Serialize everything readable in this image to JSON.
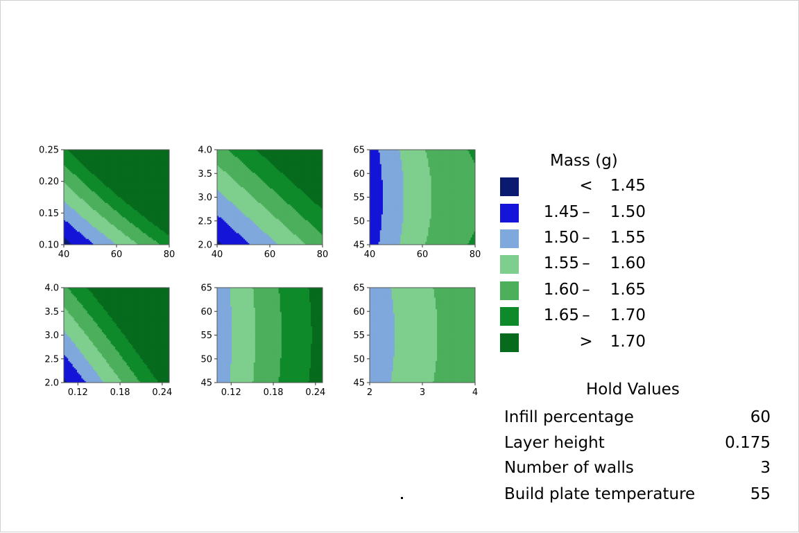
{
  "chart_data": {
    "type": "contour",
    "colors": [
      "#0a1a6e",
      "#1515d9",
      "#7fa8dc",
      "#7ecf8e",
      "#4caf5c",
      "#0f8a2a",
      "#076b1d"
    ],
    "panels": [
      {
        "x_ticks": [
          "40",
          "60",
          "80"
        ],
        "xlim": [
          40,
          80
        ],
        "y_ticks": [
          "0.10",
          "0.15",
          "0.20",
          "0.25"
        ],
        "ylim": [
          0.1,
          0.25
        ]
      },
      {
        "x_ticks": [
          "40",
          "60",
          "80"
        ],
        "xlim": [
          40,
          80
        ],
        "y_ticks": [
          "2.0",
          "2.5",
          "3.0",
          "3.5",
          "4.0"
        ],
        "ylim": [
          2,
          4
        ]
      },
      {
        "x_ticks": [
          "40",
          "60",
          "80"
        ],
        "xlim": [
          40,
          80
        ],
        "y_ticks": [
          "45",
          "50",
          "55",
          "60",
          "65"
        ],
        "ylim": [
          45,
          65
        ]
      },
      {
        "x_ticks": [
          "0.12",
          "0.18",
          "0.24"
        ],
        "xlim": [
          0.1,
          0.25
        ],
        "y_ticks": [
          "2.0",
          "2.5",
          "3.0",
          "3.5",
          "4.0"
        ],
        "ylim": [
          2,
          4
        ]
      },
      {
        "x_ticks": [
          "0.12",
          "0.18",
          "0.24"
        ],
        "xlim": [
          0.1,
          0.25
        ],
        "y_ticks": [
          "45",
          "50",
          "55",
          "60",
          "65"
        ],
        "ylim": [
          45,
          65
        ]
      },
      {
        "x_ticks": [
          "2",
          "3",
          "4"
        ],
        "xlim": [
          2,
          4
        ],
        "y_ticks": [
          "45",
          "50",
          "55",
          "60",
          "65"
        ],
        "ylim": [
          45,
          65
        ]
      }
    ],
    "legend": {
      "title": "Mass (g)",
      "entries": [
        {
          "lo": "",
          "op": "<",
          "hi": "1.45"
        },
        {
          "lo": "1.45",
          "op": "–",
          "hi": "1.50"
        },
        {
          "lo": "1.50",
          "op": "–",
          "hi": "1.55"
        },
        {
          "lo": "1.55",
          "op": "–",
          "hi": "1.60"
        },
        {
          "lo": "1.60",
          "op": "–",
          "hi": "1.65"
        },
        {
          "lo": "1.65",
          "op": "–",
          "hi": "1.70"
        },
        {
          "lo": "",
          "op": ">",
          "hi": "1.70"
        }
      ]
    },
    "hold_values": {
      "title": "Hold Values",
      "rows": [
        {
          "name": "Infill percentage",
          "value": "60"
        },
        {
          "name": "Layer height",
          "value": "0.175"
        },
        {
          "name": "Number of walls",
          "value": "3"
        },
        {
          "name": "Build plate temperature",
          "value": "55"
        }
      ]
    }
  }
}
